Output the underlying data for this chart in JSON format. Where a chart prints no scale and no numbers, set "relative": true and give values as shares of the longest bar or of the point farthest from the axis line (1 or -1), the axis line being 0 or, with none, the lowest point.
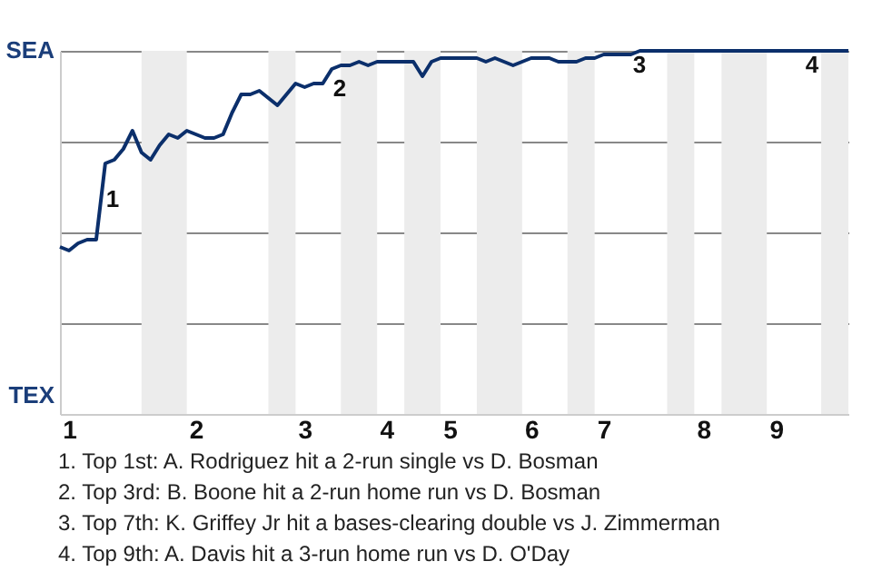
{
  "chart_data": {
    "type": "line",
    "relative": true,
    "categories": [
      null,
      "1",
      null,
      null,
      null,
      null,
      null,
      null,
      null,
      null,
      null,
      null,
      null,
      null,
      null,
      "2",
      null,
      null,
      null,
      null,
      null,
      null,
      null,
      null,
      null,
      null,
      null,
      "3",
      null,
      null,
      null,
      null,
      null,
      null,
      null,
      null,
      "4",
      null,
      null,
      null,
      null,
      null,
      null,
      "5",
      null,
      null,
      null,
      null,
      null,
      null,
      null,
      null,
      "6",
      null,
      null,
      null,
      null,
      null,
      null,
      null,
      "7",
      null,
      null,
      null,
      null,
      null,
      null,
      null,
      null,
      null,
      null,
      "8",
      null,
      null,
      null,
      null,
      null,
      null,
      null,
      "9",
      null,
      null,
      null,
      null,
      null,
      null,
      null,
      null
    ],
    "series": [
      {
        "color": "#0b2f6b",
        "values": [
          0.46,
          0.45,
          0.47,
          0.48,
          0.48,
          0.69,
          0.7,
          0.73,
          0.78,
          0.72,
          0.7,
          0.74,
          0.77,
          0.76,
          0.78,
          0.77,
          0.76,
          0.76,
          0.77,
          0.83,
          0.88,
          0.88,
          0.89,
          0.87,
          0.85,
          0.88,
          0.91,
          0.9,
          0.91,
          0.91,
          0.95,
          0.96,
          0.96,
          0.97,
          0.96,
          0.97,
          0.97,
          0.97,
          0.97,
          0.97,
          0.93,
          0.97,
          0.98,
          0.98,
          0.98,
          0.98,
          0.98,
          0.97,
          0.98,
          0.97,
          0.96,
          0.97,
          0.98,
          0.98,
          0.98,
          0.97,
          0.97,
          0.97,
          0.98,
          0.98,
          0.99,
          0.99,
          0.99,
          0.99,
          1,
          1,
          1,
          1,
          1,
          1,
          1,
          1,
          1,
          1,
          1,
          1,
          1,
          1,
          1,
          1,
          1,
          1,
          1,
          1,
          1,
          1,
          1,
          1
        ]
      }
    ],
    "grid": "y",
    "annotations": [
      "SEA",
      "TEX",
      "1",
      "2",
      "3",
      "4",
      "1. Top 1st: A. Rodriguez hit a 2-run single vs D. Bosman",
      "2. Top 3rd: B. Boone hit a 2-run home run vs D. Bosman",
      "3. Top 7th: K. Griffey Jr hit a bases-clearing double vs J. Zimmerman",
      "4. Top 9th: A. Davis hit a 3-run home run vs D. O'Day"
    ]
  }
}
